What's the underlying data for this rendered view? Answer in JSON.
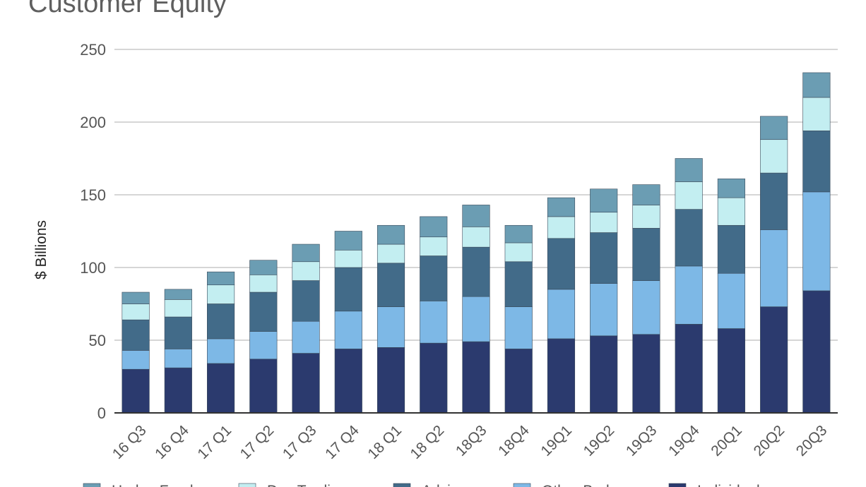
{
  "chart_data": {
    "type": "bar",
    "stacked": true,
    "title": "Customer Equity",
    "xlabel": "",
    "ylabel": "$ Billions",
    "ylim": [
      0,
      250
    ],
    "yticks": [
      0,
      50,
      100,
      150,
      200,
      250
    ],
    "grid": true,
    "legend_position": "bottom",
    "categories": [
      "16 Q3",
      "16 Q4",
      "17 Q1",
      "17 Q2",
      "17 Q3",
      "17 Q4",
      "18 Q1",
      "18 Q2",
      "18Q3",
      "18Q4",
      "19Q1",
      "19Q2",
      "19Q3",
      "19Q4",
      "20Q1",
      "20Q2",
      "20Q3"
    ],
    "series": [
      {
        "name": "Individual",
        "color": "#2b3a6e",
        "values": [
          30,
          31,
          34,
          37,
          41,
          44,
          45,
          48,
          49,
          44,
          51,
          53,
          54,
          61,
          58,
          73,
          84
        ]
      },
      {
        "name": "Other Broker",
        "color": "#7db8e6",
        "values": [
          13,
          13,
          17,
          19,
          22,
          26,
          28,
          29,
          31,
          29,
          34,
          36,
          37,
          40,
          38,
          53,
          68
        ]
      },
      {
        "name": "Advisor",
        "color": "#426b89",
        "values": [
          21,
          22,
          24,
          27,
          28,
          30,
          30,
          31,
          34,
          31,
          35,
          35,
          36,
          39,
          33,
          39,
          42
        ]
      },
      {
        "name": "Day Trading",
        "color": "#c3eef1",
        "values": [
          11,
          12,
          13,
          12,
          13,
          12,
          13,
          13,
          14,
          13,
          15,
          14,
          16,
          19,
          19,
          23,
          23
        ]
      },
      {
        "name": "Hedge Fund",
        "color": "#6b9db3",
        "values": [
          8,
          7,
          9,
          10,
          12,
          13,
          13,
          14,
          15,
          12,
          13,
          16,
          14,
          16,
          13,
          16,
          17
        ]
      }
    ]
  }
}
